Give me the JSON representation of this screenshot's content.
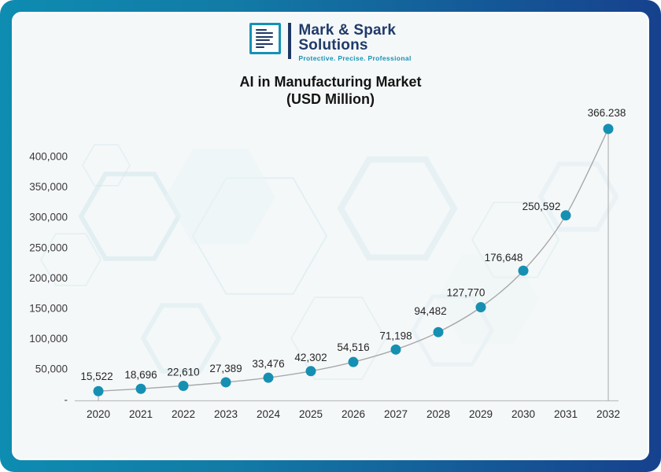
{
  "brand": {
    "name_line1": "Mark & Spark",
    "name_line2": "Solutions",
    "tagline": "Protective. Precise. Professional",
    "logo_icon": "document-lines-icon"
  },
  "chart_data": {
    "type": "line",
    "title": "AI in Manufacturing Market",
    "subtitle": "(USD Million)",
    "categories": [
      "2020",
      "2021",
      "2022",
      "2023",
      "2024",
      "2025",
      "2026",
      "2027",
      "2028",
      "2029",
      "2030",
      "2031",
      "2032"
    ],
    "series": [
      {
        "name": "AI in Manufacturing Market (USD Million)",
        "values": [
          15522,
          18696,
          22610,
          27389,
          33476,
          42302,
          54516,
          71198,
          94482,
          127770,
          176648,
          250592,
          366238
        ]
      }
    ],
    "data_labels": [
      "15,522",
      "18,696",
      "22,610",
      "27,389",
      "33,476",
      "42,302",
      "54,516",
      "71,198",
      "94,482",
      "127,770",
      "176,648",
      "250,592",
      "366.238"
    ],
    "y_axis": {
      "ticks": [
        "400,000",
        "350,000",
        "300,000",
        "250,000",
        "200,000",
        "150,000",
        "100,000",
        "50,000",
        "-"
      ],
      "range": [
        0,
        450000
      ]
    },
    "grid": false,
    "legend": false,
    "colors": {
      "marker": "#1690B2",
      "line": "#A8A8A8",
      "axis": "#BFBFBF",
      "label": "#262626",
      "tick": "#3A3A3A"
    }
  },
  "frame": {
    "border_gradient": [
      "#0E8CB1",
      "#16418D"
    ]
  }
}
